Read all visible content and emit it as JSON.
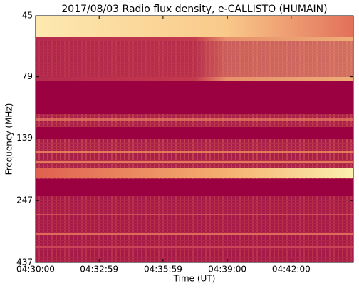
{
  "chart_data": {
    "type": "spectrogram",
    "title": "2017/08/03  Radio flux density, e-CALLISTO (HUMAIN)",
    "xlabel": "Time (UT)",
    "ylabel": "Frequency (MHz)",
    "xlim": [
      16200,
      17095
    ],
    "xticks": [
      {
        "value": 16200,
        "label": "04:30:00"
      },
      {
        "value": 16379,
        "label": "04:32:59"
      },
      {
        "value": 16559,
        "label": "04:35:59"
      },
      {
        "value": 16740,
        "label": "04:39:00"
      },
      {
        "value": 16920,
        "label": "04:42:00"
      }
    ],
    "ylim": [
      437,
      45
    ],
    "yscale": "log",
    "yticks": [
      45,
      79,
      139,
      247,
      437
    ]
  }
}
